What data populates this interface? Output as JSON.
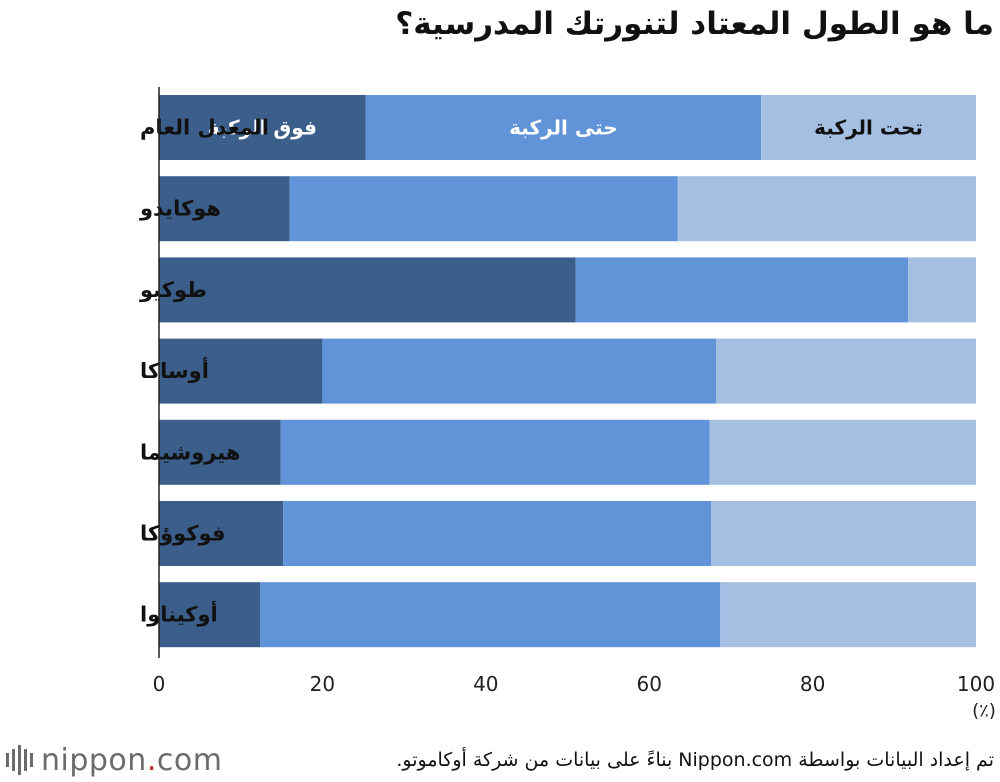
{
  "page": {
    "title": "ما هو الطول المعتاد لتنورتك المدرسية؟",
    "footer": {
      "source": "تم إعداد البيانات بواسطة Nippon.com بناءً على بيانات من شركة أوكاموتو.",
      "logo_name": "nippon",
      "logo_dot": ".",
      "logo_suffix": "com"
    }
  },
  "chart_data": {
    "type": "bar",
    "orientation": "horizontal",
    "stacked": true,
    "title": "ما هو الطول المعتاد لتنورتك المدرسية؟",
    "xlabel": "(٪)",
    "ylabel": "",
    "xlim": [
      0,
      100
    ],
    "xticks": [
      0,
      20,
      40,
      60,
      80,
      100
    ],
    "grid": false,
    "legend": "inline-labels-on-first-bar",
    "categories": [
      "المعدل العام",
      "هوكايدو",
      "طوكيو",
      "أوساكا",
      "هيروشيما",
      "فوكوؤكا",
      "أوكيناوا"
    ],
    "series": [
      {
        "name": "فوق الركبة",
        "color": "#3c5e8b",
        "label_color": "#ffffff",
        "values": [
          25.3,
          16.0,
          51.0,
          20.0,
          14.9,
          15.2,
          12.4
        ]
      },
      {
        "name": "حتى الركبة",
        "color": "#6193d8",
        "label_color": "#ffffff",
        "values": [
          48.4,
          47.5,
          40.7,
          48.2,
          52.5,
          52.4,
          56.3
        ]
      },
      {
        "name": "تحت الركبة",
        "color": "#a5bfe2",
        "label_color": "#111111",
        "values": [
          26.3,
          36.5,
          8.3,
          31.8,
          32.6,
          32.4,
          31.3
        ]
      }
    ]
  }
}
